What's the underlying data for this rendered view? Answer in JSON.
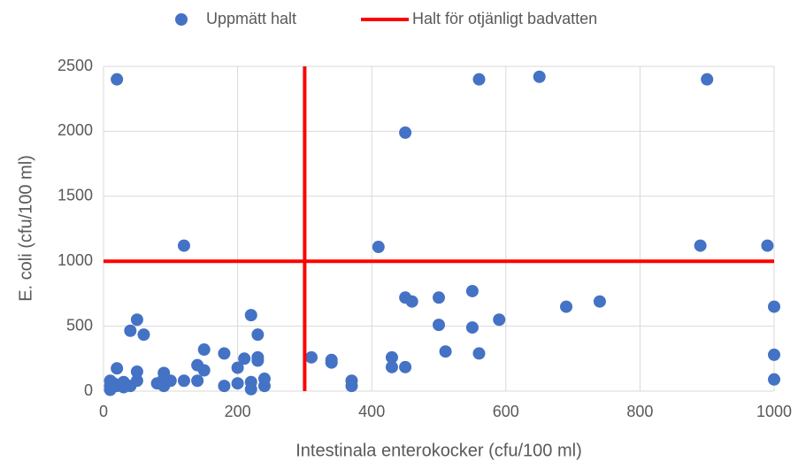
{
  "chart_data": {
    "type": "scatter",
    "x_label": "Intestinala enterokocker (cfu/100 ml)",
    "y_label": "E. coli (cfu/100 ml)",
    "xlim": [
      0,
      1000
    ],
    "xticks": [
      0,
      200,
      400,
      600,
      800,
      1000
    ],
    "ylim": [
      0,
      2500
    ],
    "yticks": [
      0,
      500,
      1000,
      1500,
      2000,
      2500
    ],
    "grid": true,
    "legend": "top",
    "series": [
      {
        "name": "Uppmätt halt",
        "color": "#4472c4",
        "kind": "points",
        "x": [
          20,
          120,
          410,
          450,
          560,
          650,
          900,
          890,
          990,
          450,
          460,
          500,
          550,
          690,
          740,
          1000,
          500,
          550,
          590,
          430,
          430,
          450,
          510,
          560,
          1000,
          1000,
          310,
          340,
          340,
          370,
          370,
          220,
          230,
          230,
          230,
          210,
          200,
          180,
          150,
          140,
          150,
          140,
          120,
          100,
          90,
          90,
          80,
          180,
          200,
          220,
          220,
          240,
          240,
          50,
          60,
          40,
          50,
          50,
          40,
          30,
          20,
          20,
          10,
          10,
          10,
          15,
          30,
          90
        ],
        "values": [
          2400,
          1120,
          1110,
          1990,
          2400,
          2420,
          2400,
          1120,
          1120,
          720,
          690,
          720,
          770,
          650,
          690,
          650,
          510,
          490,
          550,
          260,
          185,
          185,
          305,
          290,
          280,
          90,
          260,
          240,
          220,
          80,
          40,
          585,
          435,
          260,
          235,
          250,
          180,
          290,
          320,
          200,
          160,
          80,
          80,
          80,
          140,
          40,
          60,
          40,
          60,
          70,
          15,
          95,
          40,
          550,
          435,
          465,
          150,
          80,
          40,
          70,
          175,
          40,
          80,
          40,
          10,
          60,
          30,
          100
        ]
      },
      {
        "name": "Halt för otjänligt badvatten",
        "color": "#ff0000",
        "kind": "line",
        "x": [
          300,
          300,
          null,
          0,
          1000
        ],
        "values": [
          0,
          2500,
          null,
          1000,
          1000
        ]
      }
    ]
  }
}
